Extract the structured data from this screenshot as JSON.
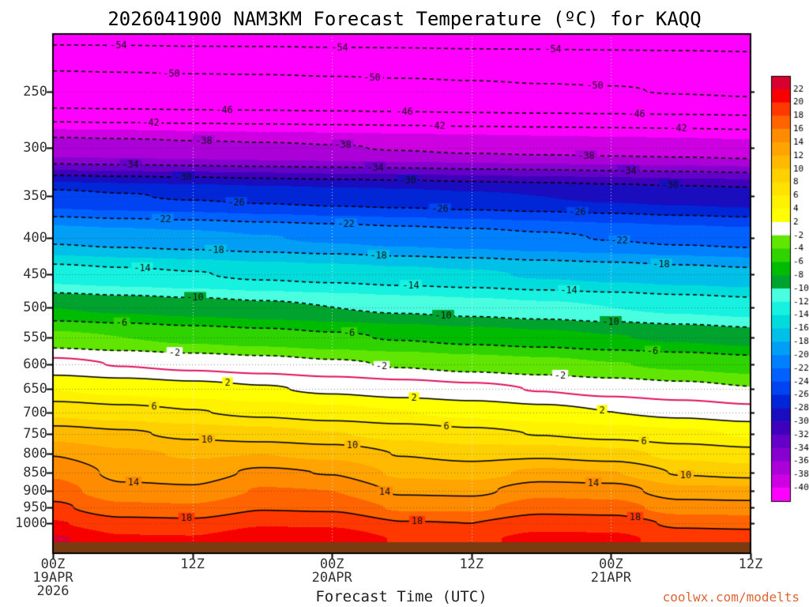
{
  "chart_data": {
    "type": "heatmap",
    "title": "2026041900 NAM3KM Forecast Temperature (ºC) for KAQQ",
    "x_label": "Forecast Time (UTC)",
    "y_axis": "pressure_hpa",
    "x_hours": [
      0,
      6,
      12,
      18,
      24,
      30,
      36,
      42,
      48,
      54,
      60
    ],
    "x_ticks": [
      {
        "hour": 0,
        "label": "00Z",
        "date": "19APR",
        "year": "2026"
      },
      {
        "hour": 12,
        "label": "12Z"
      },
      {
        "hour": 24,
        "label": "00Z",
        "date": "20APR"
      },
      {
        "hour": 36,
        "label": "12Z"
      },
      {
        "hour": 48,
        "label": "00Z",
        "date": "21APR"
      },
      {
        "hour": 60,
        "label": "12Z"
      }
    ],
    "y_ticks": [
      250,
      300,
      350,
      400,
      450,
      500,
      550,
      600,
      650,
      700,
      750,
      800,
      850,
      900,
      950,
      1000
    ],
    "vertical_gridline_hours": [
      12,
      24,
      36,
      48
    ],
    "pressure_levels_hpa": [
      200,
      250,
      300,
      350,
      400,
      450,
      500,
      550,
      600,
      650,
      700,
      750,
      800,
      850,
      900,
      950,
      1000,
      1050
    ],
    "temps_c": [
      [
        -56.0,
        -56.0,
        -56.1,
        -56.1,
        -56.2,
        -56.2,
        -56.3,
        -56.3,
        -56.4,
        -56.4,
        -56.5
      ],
      [
        -48.5,
        -48.7,
        -48.9,
        -49.0,
        -49.2,
        -49.4,
        -49.6,
        -49.8,
        -49.9,
        -50.1,
        -50.3
      ],
      [
        -37.0,
        -37.2,
        -37.5,
        -37.7,
        -37.9,
        -38.1,
        -38.4,
        -38.6,
        -38.8,
        -39.0,
        -39.3
      ],
      [
        -25.5,
        -25.9,
        -26.2,
        -26.6,
        -27.0,
        -27.3,
        -27.7,
        -28.0,
        -28.4,
        -28.8,
        -29.1
      ],
      [
        -18.5,
        -19.0,
        -19.4,
        -19.9,
        -20.3,
        -20.8,
        -21.2,
        -21.7,
        -22.1,
        -22.6,
        -23.0
      ],
      [
        -13.0,
        -13.5,
        -13.9,
        -14.4,
        -14.8,
        -15.3,
        -15.7,
        -16.2,
        -16.6,
        -17.1,
        -17.5
      ],
      [
        -8.0,
        -8.5,
        -9.0,
        -9.5,
        -10.0,
        -10.5,
        -11.0,
        -11.5,
        -12.0,
        -12.5,
        -13.0
      ],
      [
        -3.5,
        -4.0,
        -4.6,
        -5.1,
        -5.7,
        -6.2,
        -6.8,
        -7.3,
        -7.9,
        -8.4,
        -9.0
      ],
      [
        0.5,
        -0.1,
        -0.6,
        -1.1,
        -1.7,
        -2.2,
        -2.8,
        -3.3,
        -3.9,
        -4.4,
        -5.0
      ],
      [
        4.0,
        3.4,
        2.8,
        2.2,
        1.6,
        1.0,
        0.5,
        -0.1,
        -0.7,
        -1.3,
        -1.9
      ],
      [
        7.5,
        6.8,
        6.1,
        5.5,
        4.8,
        4.1,
        3.4,
        2.7,
        2.0,
        1.4,
        0.7
      ],
      [
        11.0,
        10.3,
        9.5,
        8.8,
        8.1,
        7.4,
        6.6,
        5.9,
        5.2,
        4.5,
        3.8
      ],
      [
        13.9,
        12.4,
        11.8,
        12.0,
        11.4,
        9.9,
        9.3,
        9.5,
        8.8,
        7.4,
        6.7
      ],
      [
        15.7,
        13.4,
        13.0,
        14.4,
        13.9,
        11.6,
        11.2,
        12.5,
        12.1,
        9.8,
        9.3
      ],
      [
        16.9,
        14.5,
        14.3,
        16.2,
        16.0,
        13.6,
        13.4,
        15.3,
        15.0,
        12.7,
        12.5
      ],
      [
        18.4,
        16.5,
        16.3,
        17.8,
        17.6,
        15.7,
        15.6,
        17.1,
        16.9,
        15.0,
        14.8
      ],
      [
        20.2,
        18.7,
        18.5,
        19.8,
        19.7,
        18.1,
        18.0,
        19.3,
        19.1,
        17.6,
        17.4
      ],
      [
        22.3,
        20.3,
        20.2,
        21.8,
        21.6,
        19.8,
        19.6,
        20.6,
        20.5,
        19.2,
        19.1
      ]
    ],
    "contour_interval_c": 4,
    "contour_levels_c": [
      -54,
      -50,
      -46,
      -42,
      -38,
      -34,
      -30,
      -26,
      -22,
      -18,
      -14,
      -10,
      -6,
      -2,
      2,
      6,
      10,
      14,
      18
    ],
    "zero_line_c": 0,
    "colorbar_values": [
      22,
      20,
      18,
      16,
      14,
      12,
      10,
      8,
      6,
      4,
      2,
      -2,
      -4,
      -6,
      -8,
      -10,
      -12,
      -14,
      -16,
      -18,
      -20,
      -22,
      -24,
      -26,
      -28,
      -30,
      -32,
      -34,
      -36,
      -38,
      -40
    ],
    "colorbar_colors": [
      "#d8002f",
      "#f70000",
      "#ff3800",
      "#ff6400",
      "#ff8c00",
      "#ffa400",
      "#ffba00",
      "#ffd000",
      "#ffe200",
      "#fff200",
      "#ffff00",
      "#ffffff",
      "#60e600",
      "#2ed300",
      "#00bc00",
      "#00a32e",
      "#49ffdf",
      "#17f2e0",
      "#00dcdc",
      "#00bfe8",
      "#009ff5",
      "#0080ff",
      "#0061ff",
      "#0043f2",
      "#0026d8",
      "#1a0dbf",
      "#3f00bb",
      "#6400c8",
      "#8800cf",
      "#ab00d8",
      "#cd00e2",
      "#ff00ff"
    ],
    "colors": {
      "zero_line": "#e0115f",
      "contour": "#000000",
      "terrain": "#7a3b12",
      "watermark": "#dd6633",
      "axis": "#000000"
    }
  },
  "footer": {
    "watermark": "coolwx.com/modelts"
  }
}
